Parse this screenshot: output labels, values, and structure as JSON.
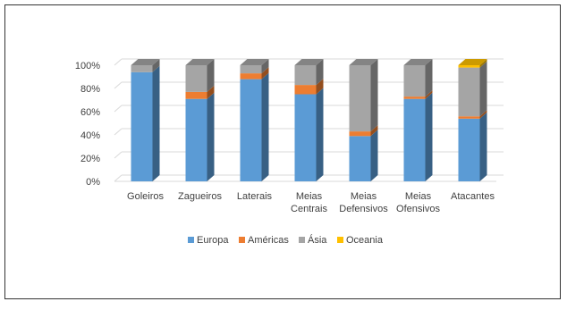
{
  "chart_data": {
    "type": "bar3d_stacked",
    "categories": [
      "Goleiros",
      "Zagueiros",
      "Laterais",
      "Meias Centrais",
      "Meias Defensivos",
      "Meias Ofensivos",
      "Atacantes"
    ],
    "series": [
      {
        "name": "Europa",
        "color": "#5b9bd5",
        "values": [
          94,
          71,
          88,
          75,
          39,
          71,
          54
        ]
      },
      {
        "name": "Américas",
        "color": "#ed7d31",
        "values": [
          0,
          6,
          5,
          8,
          4,
          2,
          2
        ]
      },
      {
        "name": "Ásia",
        "color": "#a5a5a5",
        "values": [
          6,
          23,
          7,
          17,
          57,
          27,
          42
        ]
      },
      {
        "name": "Oceania",
        "color": "#ffc000",
        "values": [
          0,
          0,
          0,
          0,
          0,
          0,
          2
        ]
      }
    ],
    "ylim": [
      0,
      100
    ],
    "yticks": [
      {
        "value": 0,
        "label": "0%"
      },
      {
        "value": 20,
        "label": "20%"
      },
      {
        "value": 40,
        "label": "40%"
      },
      {
        "value": 60,
        "label": "60%"
      },
      {
        "value": 80,
        "label": "80%"
      },
      {
        "value": 100,
        "label": "100%"
      }
    ],
    "grid": true,
    "legend": "bottom"
  }
}
